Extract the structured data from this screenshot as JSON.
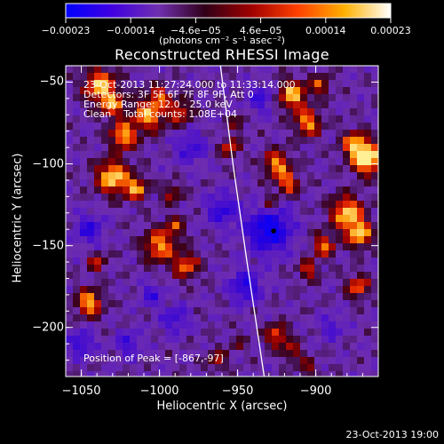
{
  "chart_data": {
    "type": "heatmap",
    "title": "Reconstructed RHESSI Image",
    "xlabel": "Heliocentric X (arcsec)",
    "ylabel": "Heliocentric Y (arcsec)",
    "xlim": [
      -1060,
      -860
    ],
    "ylim": [
      -230,
      -40
    ],
    "x_ticks": [
      "−1050",
      "−1000",
      "−950",
      "−900"
    ],
    "x_tick_values": [
      -1050,
      -1000,
      -950,
      -900
    ],
    "y_ticks": [
      "−50",
      "−100",
      "−150",
      "−200"
    ],
    "y_tick_values": [
      -50,
      -100,
      -150,
      -200
    ],
    "colorbar": {
      "ticks": [
        "−0.00023",
        "−0.00014",
        "−4.6e−05",
        "4.6e−05",
        "0.00014",
        "0.00023"
      ],
      "unit_label": "(photons cm⁻² s⁻¹ asec⁻²)",
      "range": [
        -0.00023,
        0.00023
      ],
      "colors": [
        "#0000ff",
        "#4000e0",
        "#7030b0",
        "#300018",
        "#a00000",
        "#ff4000",
        "#ffb000",
        "#ffffff"
      ]
    },
    "info_lines": [
      "23-Oct-2013 11:27:24.000 to 11:33:14.000",
      "Detectors: 3F 5F 6F 7F 8F 9F, Att 0",
      "Energy Range: 12.0 - 25.0 keV",
      "Clean    Total counts: 1.08E+04"
    ],
    "peak_label": "Position of Peak = [-867,-97]",
    "peak": [
      -867,
      -97
    ],
    "marker": [
      -927,
      -141
    ],
    "limb_curve": [
      [
        -961,
        -40
      ],
      [
        -953,
        -100
      ],
      [
        -944,
        -160
      ],
      [
        -933,
        -230
      ]
    ],
    "hot_spots": [
      [
        -1038,
        -52,
        10,
        0.9
      ],
      [
        -1030,
        -64,
        8,
        0.7
      ],
      [
        -1023,
        -83,
        8,
        0.9
      ],
      [
        -1007,
        -70,
        10,
        0.85
      ],
      [
        -1000,
        -58,
        6,
        0.6
      ],
      [
        -987,
        -68,
        8,
        0.6
      ],
      [
        -1030,
        -108,
        10,
        1.0
      ],
      [
        -1015,
        -115,
        7,
        0.8
      ],
      [
        -992,
        -118,
        6,
        0.5
      ],
      [
        -1000,
        -150,
        10,
        0.8
      ],
      [
        -983,
        -162,
        8,
        0.7
      ],
      [
        -990,
        -138,
        6,
        0.5
      ],
      [
        -1045,
        -185,
        8,
        0.9
      ],
      [
        -1040,
        -160,
        6,
        0.5
      ],
      [
        -915,
        -58,
        9,
        0.9
      ],
      [
        -905,
        -75,
        8,
        0.8
      ],
      [
        -897,
        -52,
        6,
        0.6
      ],
      [
        -925,
        -100,
        8,
        0.8
      ],
      [
        -918,
        -112,
        7,
        0.7
      ],
      [
        -930,
        -125,
        6,
        0.5
      ],
      [
        -880,
        -130,
        10,
        0.95
      ],
      [
        -872,
        -143,
        8,
        0.9
      ],
      [
        -895,
        -150,
        7,
        0.7
      ],
      [
        -867,
        -97,
        9,
        1.2
      ],
      [
        -875,
        -88,
        8,
        0.8
      ],
      [
        -873,
        -175,
        7,
        0.7
      ],
      [
        -905,
        -165,
        6,
        0.6
      ],
      [
        -925,
        -205,
        7,
        0.7
      ],
      [
        -915,
        -215,
        6,
        0.5
      ],
      [
        -905,
        -225,
        6,
        0.4
      ],
      [
        -963,
        -220,
        6,
        0.5
      ],
      [
        -950,
        -210,
        5,
        0.3
      ],
      [
        -955,
        -90,
        6,
        0.6
      ],
      [
        -950,
        -75,
        5,
        0.4
      ]
    ],
    "cold_spots": [
      [
        -930,
        -140,
        14,
        1.0
      ],
      [
        -945,
        -175,
        10,
        0.7
      ],
      [
        -960,
        -128,
        10,
        0.6
      ],
      [
        -1045,
        -140,
        9,
        0.6
      ],
      [
        -1050,
        -210,
        8,
        0.6
      ],
      [
        -1020,
        -210,
        8,
        0.5
      ],
      [
        -980,
        -90,
        10,
        0.5
      ],
      [
        -990,
        -195,
        9,
        0.5
      ],
      [
        -935,
        -60,
        9,
        0.5
      ],
      [
        -890,
        -200,
        8,
        0.4
      ],
      [
        -1005,
        -180,
        7,
        0.5
      ]
    ]
  },
  "footer": "23-Oct-2013 19:00"
}
